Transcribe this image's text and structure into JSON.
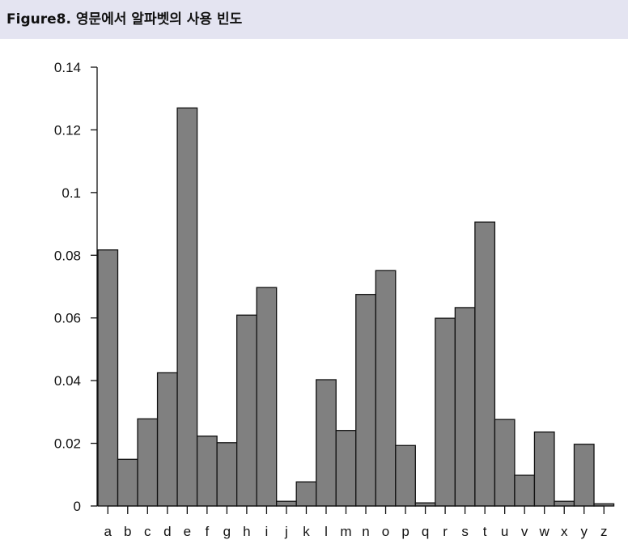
{
  "caption": "Figure8. 영문에서 알파벳의 사용 빈도",
  "chart_data": {
    "type": "bar",
    "categories": [
      "a",
      "b",
      "c",
      "d",
      "e",
      "f",
      "g",
      "h",
      "i",
      "j",
      "k",
      "l",
      "m",
      "n",
      "o",
      "p",
      "q",
      "r",
      "s",
      "t",
      "u",
      "v",
      "w",
      "x",
      "y",
      "z"
    ],
    "values": [
      0.0817,
      0.0149,
      0.0278,
      0.0425,
      0.127,
      0.0223,
      0.0202,
      0.0609,
      0.0697,
      0.0015,
      0.0077,
      0.0403,
      0.0241,
      0.0675,
      0.0751,
      0.0193,
      0.001,
      0.0599,
      0.0633,
      0.0906,
      0.0276,
      0.0098,
      0.0236,
      0.0015,
      0.0197,
      0.0007
    ],
    "ylim": [
      0,
      0.14
    ],
    "yticks": [
      "0",
      "0.02",
      "0.04",
      "0.06",
      "0.08",
      "0.1",
      "0.12",
      "0.14"
    ],
    "title": "",
    "xlabel": "",
    "ylabel": "",
    "bar_color": "#808080",
    "edge_color": "#111111"
  }
}
